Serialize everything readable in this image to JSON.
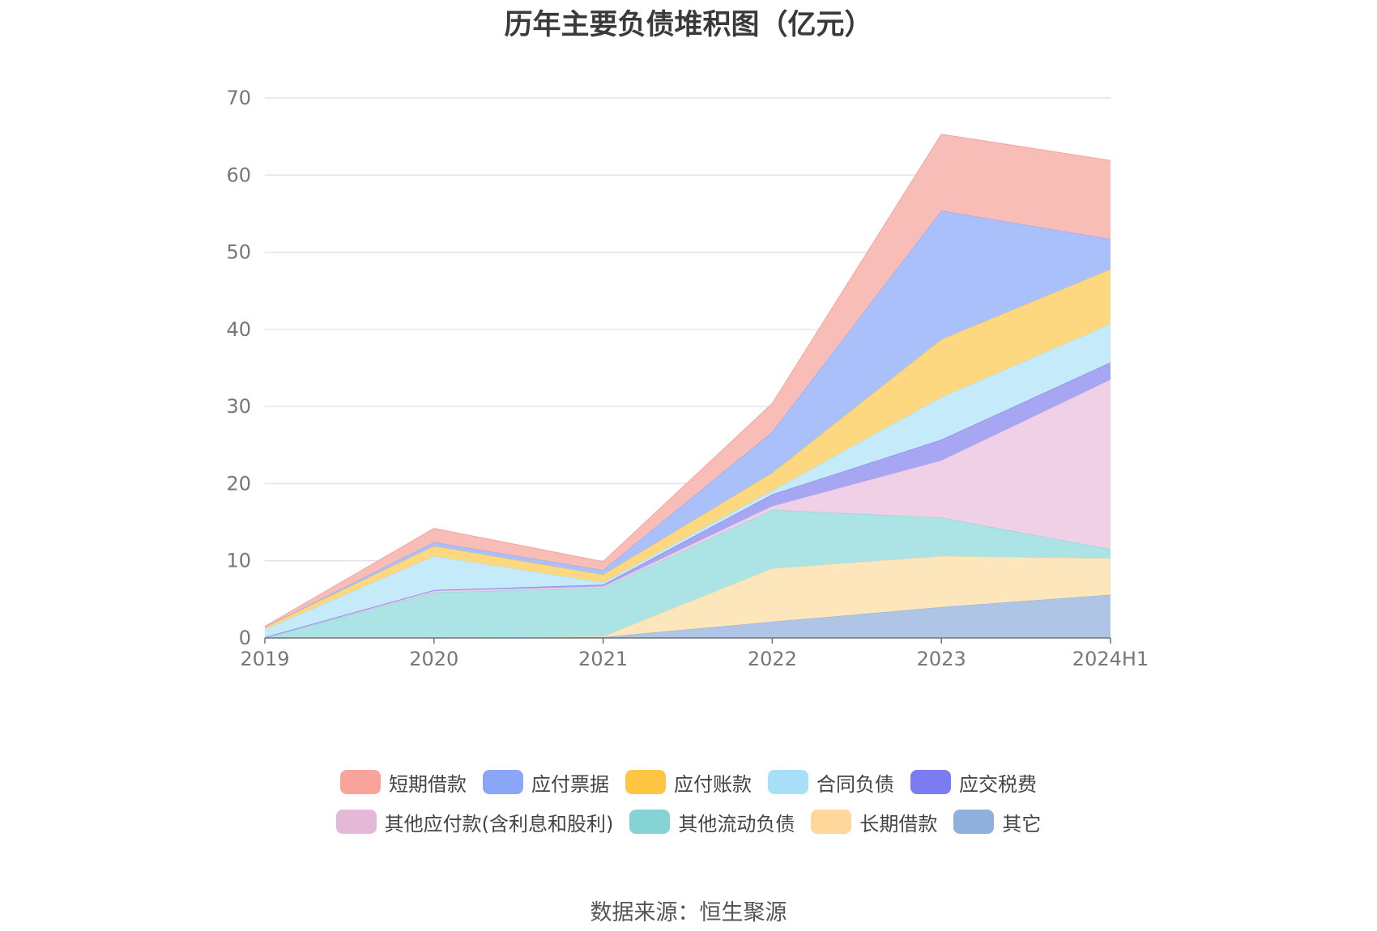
{
  "chart_data": {
    "type": "area",
    "stacked": true,
    "title": "历年主要负债堆积图（亿元）",
    "categories": [
      "2019",
      "2020",
      "2021",
      "2022",
      "2023",
      "2024H1"
    ],
    "ylim": [
      0,
      70
    ],
    "yticks": [
      0,
      10,
      20,
      30,
      40,
      50,
      60,
      70
    ],
    "grid": true,
    "legend_position": "bottom",
    "series": [
      {
        "name": "其它",
        "color": "#8fb0dd",
        "fill": "#aec5e6",
        "values": [
          0,
          0,
          0.1,
          2.1,
          4.0,
          5.6
        ]
      },
      {
        "name": "长期借款",
        "color": "#ffd79b",
        "fill": "#fde6bb",
        "values": [
          0,
          0,
          0.1,
          6.9,
          6.6,
          4.7
        ]
      },
      {
        "name": "其他流动负债",
        "color": "#86d3d6",
        "fill": "#ace3e4",
        "values": [
          0,
          5.9,
          6.3,
          7.6,
          5.0,
          1.2
        ]
      },
      {
        "name": "其他应付款(含利息和股利)",
        "color": "#e6b8d8",
        "fill": "#efd0e6",
        "values": [
          0,
          0.2,
          0.2,
          0.5,
          7.4,
          22.0
        ]
      },
      {
        "name": "应交税费",
        "color": "#7b7cf0",
        "fill": "#a6a6f3",
        "values": [
          0.1,
          0.1,
          0.2,
          1.5,
          2.7,
          2.2
        ]
      },
      {
        "name": "合同负债",
        "color": "#a6dff7",
        "fill": "#c5eaf9",
        "values": [
          1.0,
          4.4,
          0.3,
          0.5,
          5.5,
          5.0
        ]
      },
      {
        "name": "应付账款",
        "color": "#fec643",
        "fill": "#fdd881",
        "values": [
          0.3,
          1.3,
          1.0,
          2.3,
          7.5,
          7.1
        ]
      },
      {
        "name": "应付票据",
        "color": "#8ba6f7",
        "fill": "#aac0fb",
        "values": [
          0,
          0.5,
          0.6,
          5.3,
          16.7,
          3.9
        ]
      },
      {
        "name": "短期借款",
        "color": "#f8a49b",
        "fill": "#f9bdb7",
        "values": [
          0.1,
          1.8,
          1.1,
          3.7,
          9.9,
          10.2
        ]
      }
    ]
  },
  "legend_rows": [
    [
      {
        "label": "短期借款",
        "color": "#f8a49b"
      },
      {
        "label": "应付票据",
        "color": "#8ba6f7"
      },
      {
        "label": "应付账款",
        "color": "#fec643"
      },
      {
        "label": "合同负债",
        "color": "#a6dff7"
      },
      {
        "label": "应交税费",
        "color": "#7b7cf0"
      }
    ],
    [
      {
        "label": "其他应付款(含利息和股利)",
        "color": "#e6b8d8"
      },
      {
        "label": "其他流动负债",
        "color": "#86d3d6"
      },
      {
        "label": "长期借款",
        "color": "#ffd79b"
      },
      {
        "label": "其它",
        "color": "#8fb0dd"
      }
    ]
  ],
  "source": "数据来源：恒生聚源"
}
